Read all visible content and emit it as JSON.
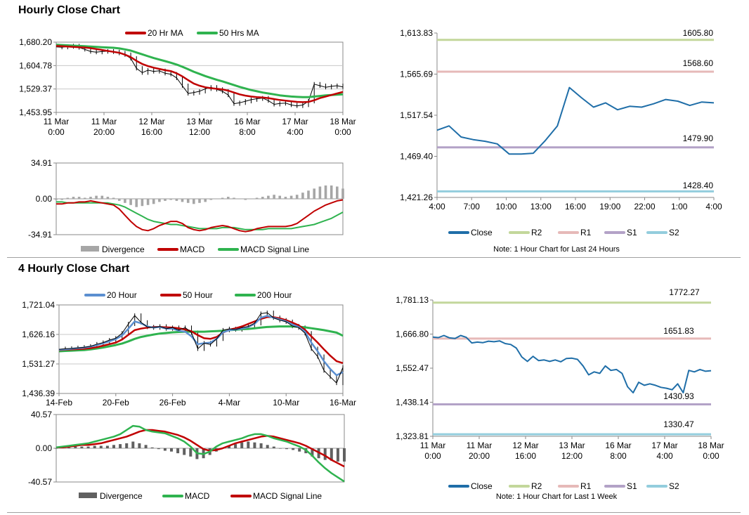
{
  "sections": {
    "hourly_title": "Hourly Close Chart",
    "four_hourly_title": "4 Hourly Close Chart"
  },
  "colors": {
    "close": "#1f6ea8",
    "ma_red": "#c00000",
    "ma_green": "#2fb34f",
    "ma_blue": "#5b8fd0",
    "r2": "#c3d79b",
    "r1": "#e6b9b8",
    "s1": "#b3a2c7",
    "s2": "#93cddd",
    "divergence_light": "#a6a6a6",
    "divergence_dark": "#606060"
  },
  "chart_data": [
    {
      "id": "hourly_price",
      "type": "line",
      "title": "",
      "legend": [
        "20 Hr MA",
        "50 Hrs MA"
      ],
      "ylim": [
        1453.95,
        1680.2
      ],
      "yticks": [
        "1,680.20",
        "1,604.78",
        "1,529.37",
        "1,453.95"
      ],
      "xticks": [
        [
          "11 Mar",
          "0:00"
        ],
        [
          "11 Mar",
          "20:00"
        ],
        [
          "12 Mar",
          "16:00"
        ],
        [
          "13 Mar",
          "12:00"
        ],
        [
          "16 Mar",
          "8:00"
        ],
        [
          "17 Mar",
          "4:00"
        ],
        [
          "18 Mar",
          "0:00"
        ]
      ],
      "series": [
        {
          "name": "Close",
          "values": [
            1665,
            1664,
            1666,
            1668,
            1663,
            1657,
            1650,
            1648,
            1650,
            1651,
            1649,
            1645,
            1640,
            1628,
            1596,
            1582,
            1590,
            1586,
            1588,
            1580,
            1577,
            1565,
            1540,
            1515,
            1518,
            1522,
            1530,
            1535,
            1528,
            1522,
            1510,
            1482,
            1485,
            1490,
            1495,
            1498,
            1500,
            1492,
            1480,
            1483,
            1484,
            1478,
            1475,
            1478,
            1490,
            1545,
            1540,
            1535,
            1538,
            1540,
            1536
          ]
        },
        {
          "name": "20 Hr MA",
          "values": [
            1668,
            1667,
            1666,
            1665,
            1664,
            1663,
            1661,
            1658,
            1655,
            1652,
            1649,
            1646,
            1640,
            1632,
            1620,
            1610,
            1603,
            1598,
            1594,
            1590,
            1587,
            1580,
            1570,
            1558,
            1547,
            1540,
            1535,
            1532,
            1530,
            1528,
            1524,
            1518,
            1512,
            1508,
            1505,
            1503,
            1502,
            1500,
            1497,
            1494,
            1492,
            1490,
            1488,
            1487,
            1488,
            1493,
            1500,
            1505,
            1510,
            1515,
            1520
          ]
        },
        {
          "name": "50 Hrs MA",
          "values": [
            1672,
            1671,
            1670,
            1669,
            1668,
            1667,
            1666,
            1665,
            1664,
            1663,
            1662,
            1660,
            1657,
            1653,
            1647,
            1641,
            1635,
            1629,
            1624,
            1619,
            1614,
            1608,
            1601,
            1593,
            1585,
            1578,
            1571,
            1565,
            1559,
            1554,
            1548,
            1542,
            1536,
            1531,
            1526,
            1522,
            1518,
            1515,
            1512,
            1509,
            1507,
            1505,
            1504,
            1503,
            1503,
            1505,
            1507,
            1509,
            1510,
            1511,
            1512
          ]
        }
      ]
    },
    {
      "id": "hourly_macd",
      "type": "line",
      "ylim": [
        -34.91,
        34.91
      ],
      "yticks": [
        "34.91",
        "0.00",
        "-34.91"
      ],
      "legend": [
        "Divergence",
        "MACD",
        "MACD Signal Line"
      ],
      "series": [
        {
          "name": "Divergence",
          "values": [
            -1,
            -1,
            1,
            2,
            2,
            1,
            2,
            3,
            3,
            2,
            1,
            -2,
            -4,
            -6,
            -8,
            -7,
            -6,
            -5,
            -3,
            -2,
            -1,
            -2,
            -3,
            -4,
            -5,
            -4,
            -3,
            -1,
            0,
            1,
            2,
            1,
            0,
            -1,
            0,
            1,
            2,
            3,
            4,
            3,
            2,
            3,
            4,
            6,
            8,
            10,
            12,
            13,
            13,
            12,
            10
          ]
        },
        {
          "name": "MACD",
          "values": [
            -5,
            -5,
            -4,
            -4,
            -3,
            -3,
            -2,
            -3,
            -4,
            -5,
            -6,
            -10,
            -16,
            -22,
            -27,
            -30,
            -31,
            -29,
            -26,
            -24,
            -22,
            -22,
            -24,
            -28,
            -30,
            -31,
            -30,
            -28,
            -27,
            -26,
            -27,
            -29,
            -31,
            -32,
            -31,
            -29,
            -28,
            -27,
            -27,
            -27,
            -27,
            -26,
            -24,
            -20,
            -16,
            -12,
            -9,
            -6,
            -4,
            -2,
            -1
          ]
        },
        {
          "name": "MACD Signal Line",
          "values": [
            -3,
            -3,
            -4,
            -4,
            -4,
            -4,
            -4,
            -4,
            -4,
            -4,
            -5,
            -6,
            -8,
            -11,
            -14,
            -17,
            -20,
            -22,
            -23,
            -24,
            -25,
            -25,
            -26,
            -27,
            -28,
            -29,
            -29,
            -29,
            -29,
            -28,
            -28,
            -28,
            -29,
            -30,
            -30,
            -30,
            -30,
            -29,
            -29,
            -29,
            -29,
            -29,
            -28,
            -27,
            -26,
            -25,
            -23,
            -21,
            -19,
            -16,
            -13
          ]
        }
      ]
    },
    {
      "id": "hourly_24h",
      "type": "line",
      "ylim": [
        1421.26,
        1613.83
      ],
      "yticks": [
        "1,613.83",
        "1,565.69",
        "1,517.54",
        "1,469.40",
        "1,421.26"
      ],
      "xticks": [
        "4:00",
        "7:00",
        "10:00",
        "13:00",
        "16:00",
        "19:00",
        "22:00",
        "1:00",
        "4:00"
      ],
      "note": "Note: 1 Hour Chart for Last 24 Hours",
      "legend": [
        "Close",
        "R2",
        "R1",
        "S1",
        "S2"
      ],
      "levels": [
        {
          "name": "R2",
          "value": 1605.8,
          "label": "1605.80"
        },
        {
          "name": "R1",
          "value": 1568.6,
          "label": "1568.60"
        },
        {
          "name": "S1",
          "value": 1479.9,
          "label": "1479.90"
        },
        {
          "name": "S2",
          "value": 1428.4,
          "label": "1428.40"
        }
      ],
      "series": [
        {
          "name": "Close",
          "values": [
            1500,
            1505,
            1492,
            1489,
            1487,
            1484,
            1472,
            1472,
            1473,
            1488,
            1505,
            1550,
            1538,
            1527,
            1532,
            1524,
            1528,
            1527,
            1531,
            1536,
            1534,
            1529,
            1533,
            1532
          ]
        }
      ]
    },
    {
      "id": "four_hourly_price",
      "type": "line",
      "ylim": [
        1436.39,
        1721.04
      ],
      "yticks": [
        "1,721.04",
        "1,626.16",
        "1,531.27",
        "1,436.39"
      ],
      "xticks": [
        "14-Feb",
        "20-Feb",
        "26-Feb",
        "4-Mar",
        "10-Mar",
        "16-Mar"
      ],
      "legend": [
        "20 Hour",
        "50 Hour",
        "200 Hour"
      ],
      "series": [
        {
          "name": "Close",
          "values": [
            1578,
            1580,
            1581,
            1583,
            1585,
            1588,
            1595,
            1600,
            1608,
            1614,
            1630,
            1660,
            1687,
            1665,
            1650,
            1648,
            1652,
            1645,
            1648,
            1640,
            1648,
            1632,
            1580,
            1598,
            1594,
            1612,
            1640,
            1644,
            1642,
            1648,
            1652,
            1662,
            1693,
            1696,
            1680,
            1672,
            1667,
            1653,
            1648,
            1630,
            1580,
            1555,
            1510,
            1490,
            1470,
            1520
          ]
        },
        {
          "name": "20 Hour",
          "values": [
            1577,
            1578,
            1580,
            1582,
            1584,
            1587,
            1592,
            1598,
            1604,
            1611,
            1623,
            1645,
            1668,
            1662,
            1652,
            1648,
            1650,
            1645,
            1645,
            1638,
            1635,
            1620,
            1595,
            1598,
            1600,
            1612,
            1633,
            1640,
            1642,
            1645,
            1650,
            1660,
            1680,
            1686,
            1680,
            1674,
            1668,
            1658,
            1650,
            1635,
            1600,
            1572,
            1540,
            1515,
            1495,
            1505
          ]
        },
        {
          "name": "50 Hour",
          "values": [
            1576,
            1577,
            1578,
            1579,
            1580,
            1582,
            1585,
            1590,
            1595,
            1600,
            1610,
            1625,
            1640,
            1645,
            1648,
            1650,
            1650,
            1649,
            1648,
            1646,
            1642,
            1636,
            1624,
            1614,
            1612,
            1618,
            1632,
            1641,
            1646,
            1652,
            1660,
            1668,
            1676,
            1682,
            1682,
            1678,
            1672,
            1664,
            1655,
            1641,
            1620,
            1600,
            1578,
            1558,
            1540,
            1534
          ]
        },
        {
          "name": "200 Hour",
          "values": [
            1572,
            1573,
            1574,
            1575,
            1576,
            1578,
            1581,
            1584,
            1588,
            1592,
            1597,
            1604,
            1612,
            1618,
            1622,
            1626,
            1629,
            1631,
            1633,
            1634,
            1635,
            1635,
            1635,
            1635,
            1636,
            1637,
            1638,
            1640,
            1641,
            1643,
            1644,
            1646,
            1648,
            1650,
            1651,
            1652,
            1652,
            1652,
            1651,
            1649,
            1646,
            1643,
            1640,
            1636,
            1632,
            1622
          ]
        }
      ]
    },
    {
      "id": "four_hourly_macd",
      "type": "line",
      "ylim": [
        -40.57,
        40.57
      ],
      "yticks": [
        "40.57",
        "0.00",
        "-40.57"
      ],
      "xticks": [],
      "legend": [
        "Divergence",
        "MACD",
        "MACD Signal Line"
      ],
      "series": [
        {
          "name": "Divergence",
          "values": [
            0,
            1,
            1,
            2,
            2,
            2,
            3,
            3,
            3,
            4,
            5,
            6,
            8,
            6,
            4,
            1,
            -1,
            -3,
            -4,
            -6,
            -8,
            -10,
            -13,
            -12,
            -8,
            -4,
            0,
            3,
            5,
            7,
            8,
            7,
            6,
            4,
            2,
            0,
            -1,
            -2,
            -4,
            -6,
            -10,
            -12,
            -14,
            -15,
            -16,
            -16
          ]
        },
        {
          "name": "MACD",
          "values": [
            1,
            2,
            3,
            4,
            5,
            6,
            8,
            10,
            12,
            14,
            17,
            22,
            27,
            26,
            22,
            20,
            19,
            18,
            15,
            12,
            8,
            2,
            -6,
            -7,
            -4,
            2,
            6,
            8,
            10,
            12,
            15,
            17,
            17,
            15,
            12,
            10,
            8,
            5,
            2,
            -2,
            -9,
            -17,
            -24,
            -30,
            -35,
            -40
          ]
        },
        {
          "name": "MACD Signal Line",
          "values": [
            1,
            1,
            2,
            3,
            4,
            4,
            5,
            6,
            8,
            10,
            12,
            14,
            17,
            20,
            22,
            22,
            21,
            20,
            18,
            16,
            13,
            9,
            4,
            -1,
            -3,
            -2,
            0,
            3,
            6,
            8,
            10,
            12,
            14,
            15,
            14,
            12,
            10,
            8,
            6,
            3,
            -1,
            -5,
            -9,
            -14,
            -18,
            -22
          ]
        }
      ]
    },
    {
      "id": "four_hourly_week",
      "type": "line",
      "ylim": [
        1323.81,
        1781.13
      ],
      "yticks": [
        "1,781.13",
        "1,666.80",
        "1,552.47",
        "1,438.14",
        "1,323.81"
      ],
      "xticks": [
        [
          "11 Mar",
          "0:00"
        ],
        [
          "11 Mar",
          "20:00"
        ],
        [
          "12 Mar",
          "16:00"
        ],
        [
          "13 Mar",
          "12:00"
        ],
        [
          "16 Mar",
          "8:00"
        ],
        [
          "17 Mar",
          "4:00"
        ],
        [
          "18 Mar",
          "0:00"
        ]
      ],
      "note": "Note: 1 Hour Chart for Last 1 Week",
      "legend": [
        "Close",
        "R2",
        "R1",
        "S1",
        "S2"
      ],
      "levels": [
        {
          "name": "R2",
          "value": 1772.27,
          "label": "1772.27"
        },
        {
          "name": "R1",
          "value": 1651.83,
          "label": "1651.83"
        },
        {
          "name": "S1",
          "value": 1430.93,
          "label": "1430.93"
        },
        {
          "name": "S2",
          "value": 1330.47,
          "label": "1330.47"
        }
      ],
      "series": [
        {
          "name": "Close",
          "values": [
            1657,
            1655,
            1662,
            1654,
            1652,
            1662,
            1656,
            1637,
            1640,
            1638,
            1643,
            1641,
            1644,
            1635,
            1632,
            1620,
            1590,
            1575,
            1592,
            1578,
            1580,
            1575,
            1580,
            1574,
            1585,
            1586,
            1582,
            1560,
            1530,
            1540,
            1535,
            1560,
            1545,
            1548,
            1535,
            1490,
            1470,
            1505,
            1495,
            1500,
            1495,
            1488,
            1485,
            1480,
            1500,
            1470,
            1545,
            1540,
            1548,
            1542,
            1544
          ]
        }
      ]
    }
  ]
}
